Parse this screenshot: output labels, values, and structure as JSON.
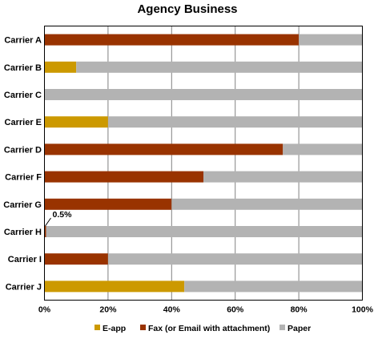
{
  "chart_data": {
    "type": "bar",
    "orientation": "horizontal",
    "stacked": true,
    "title": "Agency Business",
    "xlabel": "",
    "ylabel": "",
    "xlim": [
      0,
      100
    ],
    "x_ticks": [
      "0%",
      "20%",
      "40%",
      "60%",
      "80%",
      "100%"
    ],
    "grid": true,
    "legend_position": "bottom",
    "categories": [
      "Carrier A",
      "Carrier B",
      "Carrier C",
      "Carrier E",
      "Carrier D",
      "Carrier F",
      "Carrier G",
      "Carrier H",
      "Carrier I",
      "Carrier J"
    ],
    "series": [
      {
        "name": "E-app",
        "color": "#CC9900",
        "values": [
          0,
          10,
          0,
          20,
          0,
          0,
          0,
          0,
          0,
          44
        ]
      },
      {
        "name": "Fax (or Email with attachment)",
        "color": "#993300",
        "values": [
          80,
          0,
          0,
          0,
          75,
          50,
          40,
          0.5,
          20,
          0
        ]
      },
      {
        "name": "Paper",
        "color": "#B3B3B3",
        "values": [
          20,
          90,
          100,
          80,
          25,
          50,
          60,
          99.5,
          80,
          56
        ]
      }
    ],
    "annotations": [
      {
        "category": "Carrier H",
        "text": "0.5%"
      }
    ]
  }
}
